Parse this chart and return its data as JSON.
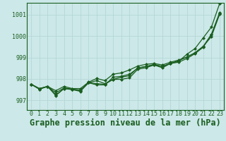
{
  "title": "Graphe pression niveau de la mer (hPa)",
  "xlim": [
    -0.5,
    23.5
  ],
  "ylim": [
    996.55,
    1001.55
  ],
  "yticks": [
    997,
    998,
    999,
    1000,
    1001
  ],
  "xticks": [
    0,
    1,
    2,
    3,
    4,
    5,
    6,
    7,
    8,
    9,
    10,
    11,
    12,
    13,
    14,
    15,
    16,
    17,
    18,
    19,
    20,
    21,
    22,
    23
  ],
  "bg_color": "#cce8e8",
  "grid_color": "#b0d4d4",
  "line_color": "#1a5e20",
  "series": [
    [
      997.75,
      997.52,
      997.65,
      997.22,
      997.55,
      997.5,
      997.42,
      997.82,
      997.72,
      997.72,
      998.08,
      998.12,
      998.22,
      998.5,
      998.58,
      998.65,
      998.58,
      998.72,
      998.78,
      998.95,
      999.18,
      999.48,
      1000.08,
      1001.05
    ],
    [
      997.75,
      997.55,
      997.65,
      997.35,
      997.58,
      997.52,
      997.48,
      997.82,
      997.92,
      997.78,
      997.98,
      997.98,
      998.05,
      998.45,
      998.52,
      998.65,
      998.52,
      998.72,
      998.85,
      999.02,
      999.22,
      999.52,
      999.98,
      1001.02
    ],
    [
      997.75,
      997.55,
      997.65,
      997.45,
      997.65,
      997.55,
      997.55,
      997.85,
      998.02,
      997.92,
      998.22,
      998.28,
      998.42,
      998.6,
      998.68,
      998.72,
      998.65,
      998.78,
      998.88,
      999.02,
      999.22,
      999.52,
      1000.08,
      1001.1
    ],
    [
      997.75,
      997.52,
      997.65,
      997.25,
      997.55,
      997.52,
      997.45,
      997.82,
      997.78,
      997.75,
      997.98,
      998.08,
      998.15,
      998.52,
      998.58,
      998.68,
      998.58,
      998.72,
      998.82,
      999.15,
      999.42,
      999.92,
      1000.42,
      1001.52
    ]
  ],
  "marker": "D",
  "markersize": 2.0,
  "linewidth": 0.9,
  "title_fontsize": 8.5,
  "tick_fontsize": 6.0,
  "title_color": "#1a5e20",
  "tick_color": "#1a5e20"
}
